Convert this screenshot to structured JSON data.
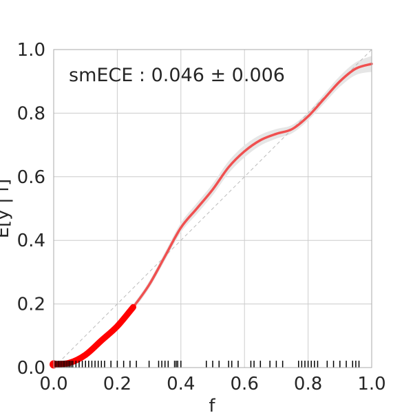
{
  "chart_data": {
    "type": "line",
    "xlabel": "f",
    "ylabel": "E[y | f]",
    "xlim": [
      0.0,
      1.0
    ],
    "ylim": [
      0.0,
      1.0
    ],
    "grid": true,
    "xticks": [
      "0.0",
      "0.2",
      "0.4",
      "0.6",
      "0.8",
      "1.0"
    ],
    "yticks": [
      "0.0",
      "0.2",
      "0.4",
      "0.6",
      "0.8",
      "1.0"
    ],
    "annotation": "smECE : 0.046 ± 0.006",
    "colors": {
      "curve": "#f05050",
      "curve_heavy": "#ff0000",
      "band": "#e6e6e6",
      "diagonal": "#bbbbbb",
      "grid": "#cccccc",
      "rug": "#000000"
    },
    "calibration_curve": {
      "x": [
        0.0,
        0.05,
        0.1,
        0.15,
        0.2,
        0.25,
        0.3,
        0.35,
        0.4,
        0.45,
        0.5,
        0.55,
        0.6,
        0.65,
        0.7,
        0.75,
        0.8,
        0.85,
        0.9,
        0.95,
        1.0
      ],
      "y": [
        0.01,
        0.015,
        0.04,
        0.085,
        0.13,
        0.19,
        0.26,
        0.35,
        0.44,
        0.5,
        0.56,
        0.63,
        0.68,
        0.715,
        0.735,
        0.75,
        0.79,
        0.845,
        0.9,
        0.94,
        0.955
      ],
      "band_halfwidth": [
        0.004,
        0.004,
        0.005,
        0.006,
        0.007,
        0.009,
        0.011,
        0.013,
        0.015,
        0.017,
        0.018,
        0.019,
        0.019,
        0.017,
        0.015,
        0.013,
        0.013,
        0.015,
        0.017,
        0.02,
        0.025
      ]
    },
    "rug_x": [
      0.005,
      0.01,
      0.015,
      0.02,
      0.025,
      0.03,
      0.035,
      0.04,
      0.045,
      0.05,
      0.055,
      0.06,
      0.07,
      0.08,
      0.09,
      0.1,
      0.11,
      0.12,
      0.13,
      0.14,
      0.15,
      0.16,
      0.18,
      0.2,
      0.22,
      0.24,
      0.26,
      0.3,
      0.33,
      0.34,
      0.35,
      0.36,
      0.38,
      0.385,
      0.39,
      0.4,
      0.48,
      0.5,
      0.52,
      0.55,
      0.56,
      0.58,
      0.62,
      0.63,
      0.65,
      0.68,
      0.7,
      0.72,
      0.77,
      0.78,
      0.79,
      0.8,
      0.81,
      0.82,
      0.83,
      0.86,
      0.88,
      0.9,
      0.92,
      0.94,
      0.95,
      0.96
    ]
  }
}
